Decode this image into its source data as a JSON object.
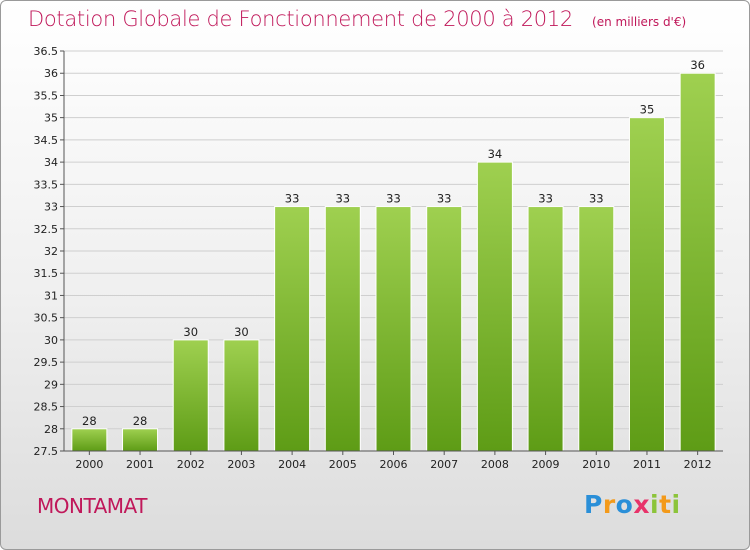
{
  "header": {
    "title": "Dotation Globale de Fonctionnement de 2000 à 2012",
    "unit_note": "(en milliers d'€)"
  },
  "commune": "MONTAMAT",
  "logo": {
    "parts": [
      "P",
      "r",
      "o",
      "x",
      "i",
      "t",
      "i"
    ]
  },
  "colors": {
    "title": "#c0185a",
    "bar_top": "#9fd050",
    "bar_bottom": "#5e9c16",
    "grid": "#cfcfcf"
  },
  "chart_data": {
    "type": "bar",
    "title": "Dotation Globale de Fonctionnement de 2000 à 2012",
    "categories": [
      "2000",
      "2001",
      "2002",
      "2003",
      "2004",
      "2005",
      "2006",
      "2007",
      "2008",
      "2009",
      "2010",
      "2011",
      "2012"
    ],
    "values": [
      28,
      28,
      30,
      30,
      33,
      33,
      33,
      33,
      34,
      33,
      33,
      35,
      36
    ],
    "ylim": [
      27.5,
      36.5
    ],
    "yticks": [
      27.5,
      28,
      28.5,
      29,
      29.5,
      30,
      30.5,
      31,
      31.5,
      32,
      32.5,
      33,
      33.5,
      34,
      34.5,
      35,
      35.5,
      36,
      36.5
    ],
    "xlabel": "",
    "ylabel": "",
    "grid": true
  }
}
